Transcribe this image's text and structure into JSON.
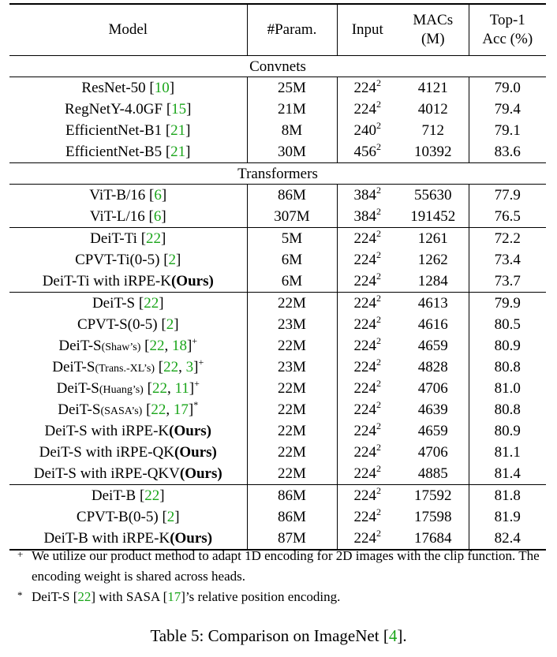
{
  "header": {
    "model": "Model",
    "param": "#Param.",
    "input": "Input",
    "macs_line1": "MACs",
    "macs_line2": "(M)",
    "acc_line1": "Top-1",
    "acc_line2": "Acc (%)"
  },
  "sections": {
    "convnets": "Convnets",
    "transformers": "Transformers"
  },
  "rows": [
    {
      "name": "ResNet-50",
      "refs": "10",
      "param": "25M",
      "input": "224",
      "exp": "2",
      "macs": "4121",
      "acc": "79.0"
    },
    {
      "name": "RegNetY-4.0GF",
      "refs": "15",
      "param": "21M",
      "input": "224",
      "exp": "2",
      "macs": "4012",
      "acc": "79.4"
    },
    {
      "name": "EfficientNet-B1",
      "refs": "21",
      "param": "8M",
      "input": "240",
      "exp": "2",
      "macs": "712",
      "acc": "79.1"
    },
    {
      "name": "EfficientNet-B5",
      "refs": "21",
      "param": "30M",
      "input": "456",
      "exp": "2",
      "macs": "10392",
      "acc": "83.6"
    },
    {
      "name": "ViT-B/16",
      "refs": "6",
      "param": "86M",
      "input": "384",
      "exp": "2",
      "macs": "55630",
      "acc": "77.9"
    },
    {
      "name": "ViT-L/16",
      "refs": "6",
      "param": "307M",
      "input": "384",
      "exp": "2",
      "macs": "191452",
      "acc": "76.5"
    },
    {
      "name": "DeiT-Ti",
      "refs": "22",
      "param": "5M",
      "input": "224",
      "exp": "2",
      "macs": "1261",
      "acc": "72.2"
    },
    {
      "name": "CPVT-Ti(0-5)",
      "refs": "2",
      "param": "6M",
      "input": "224",
      "exp": "2",
      "macs": "1262",
      "acc": "73.4"
    },
    {
      "name": "DeiT-Ti with iRPE-K",
      "bold": "(Ours)",
      "param": "6M",
      "input": "224",
      "exp": "2",
      "macs": "1284",
      "acc": "73.7"
    },
    {
      "name": "DeiT-S",
      "refs": "22",
      "param": "22M",
      "input": "224",
      "exp": "2",
      "macs": "4613",
      "acc": "79.9"
    },
    {
      "name": "CPVT-S(0-5)",
      "refs": "2",
      "param": "23M",
      "input": "224",
      "exp": "2",
      "macs": "4616",
      "acc": "80.5"
    },
    {
      "name": "DeiT-S",
      "small": "(Shaw’s)",
      "ref1": "22",
      "ref2": "18",
      "mark": "+",
      "param": "22M",
      "input": "224",
      "exp": "2",
      "macs": "4659",
      "acc": "80.9"
    },
    {
      "name": "DeiT-S",
      "small": "(Trans.-XL’s)",
      "ref1": "22",
      "ref2": "3",
      "mark": "+",
      "param": "23M",
      "input": "224",
      "exp": "2",
      "macs": "4828",
      "acc": "80.8"
    },
    {
      "name": "DeiT-S",
      "small": "(Huang’s)",
      "ref1": "22",
      "ref2": "11",
      "mark": "+",
      "param": "22M",
      "input": "224",
      "exp": "2",
      "macs": "4706",
      "acc": "81.0"
    },
    {
      "name": "DeiT-S",
      "small": "(SASA’s)",
      "ref1": "22",
      "ref2": "17",
      "mark": "*",
      "param": "22M",
      "input": "224",
      "exp": "2",
      "macs": "4639",
      "acc": "80.8"
    },
    {
      "name": "DeiT-S with iRPE-K",
      "bold": "(Ours)",
      "param": "22M",
      "input": "224",
      "exp": "2",
      "macs": "4659",
      "acc": "80.9"
    },
    {
      "name": "DeiT-S with iRPE-QK",
      "bold": "(Ours)",
      "param": "22M",
      "input": "224",
      "exp": "2",
      "macs": "4706",
      "acc": "81.1"
    },
    {
      "name": "DeiT-S with iRPE-QKV",
      "bold": "(Ours)",
      "param": "22M",
      "input": "224",
      "exp": "2",
      "macs": "4885",
      "acc": "81.4"
    },
    {
      "name": "DeiT-B",
      "refs": "22",
      "param": "86M",
      "input": "224",
      "exp": "2",
      "macs": "17592",
      "acc": "81.8"
    },
    {
      "name": "CPVT-B(0-5)",
      "refs": "2",
      "param": "86M",
      "input": "224",
      "exp": "2",
      "macs": "17598",
      "acc": "81.9"
    },
    {
      "name": "DeiT-B with iRPE-K",
      "bold": "(Ours)",
      "param": "87M",
      "input": "224",
      "exp": "2",
      "macs": "17684",
      "acc": "82.4"
    }
  ],
  "footnotes": {
    "plus_mark": "+",
    "plus_text": "We utilize our product method to adapt 1D encoding for 2D images with the clip function. The encoding weight is shared across heads.",
    "star_mark": "*",
    "star_pre": "DeiT-S",
    "star_ref1": "22",
    "star_mid": "with SASA",
    "star_ref2": "17",
    "star_post": "’s relative position encoding."
  },
  "caption": {
    "text": "Table 5: Comparison on ImageNet",
    "ref": "4",
    "end": "."
  }
}
